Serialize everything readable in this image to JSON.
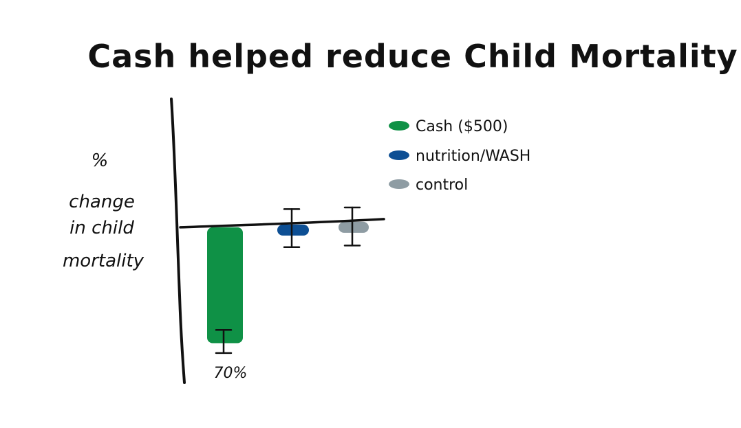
{
  "chart_data": {
    "type": "bar",
    "title": "Cash helped reduce Child Mortality",
    "ylabel_lines": [
      "%",
      "change",
      "in child",
      "mortality"
    ],
    "xlabel": "",
    "categories": [
      "Cash ($500)",
      "nutrition/WASH",
      "control"
    ],
    "values": [
      -70,
      -4,
      0
    ],
    "error_bars": [
      {
        "low": -76,
        "high": -62
      },
      {
        "low": -12,
        "high": 11
      },
      {
        "low": -11,
        "high": 12
      }
    ],
    "colors": [
      "#0f9146",
      "#0d4f94",
      "#8e9ca3"
    ],
    "ylim": [
      -86,
      12
    ],
    "data_labels": [
      "70%",
      "",
      ""
    ],
    "legend": {
      "placement": "top-right",
      "entries": [
        {
          "label": "Cash ($500)",
          "color": "#0f9146"
        },
        {
          "label": "nutrition/WASH",
          "color": "#0d4f94"
        },
        {
          "label": "control",
          "color": "#8e9ca3"
        }
      ]
    },
    "grid": false
  }
}
